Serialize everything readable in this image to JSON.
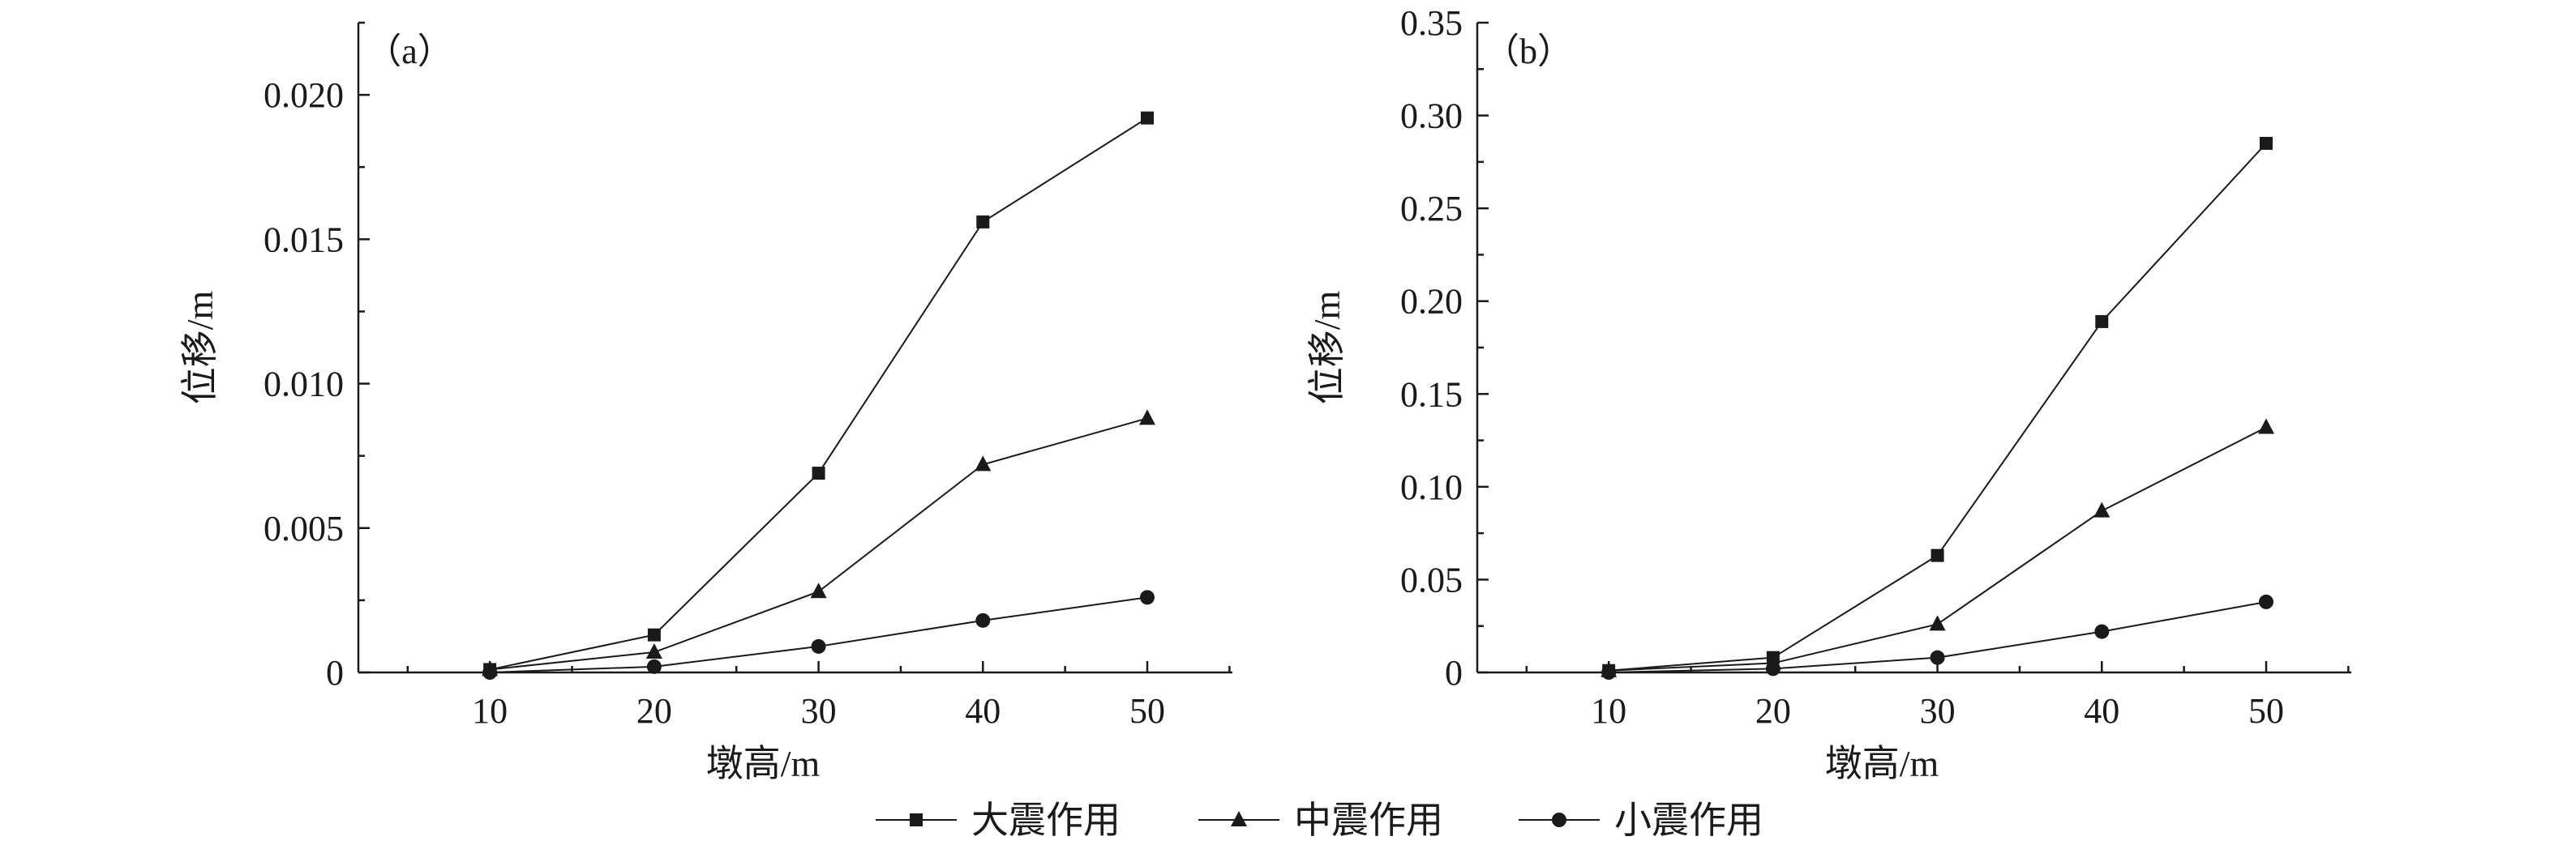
{
  "chart_data": [
    {
      "type": "line",
      "panel_label": "（a）",
      "xlabel": "墩高/m",
      "ylabel": "位移/m",
      "x": [
        10,
        20,
        30,
        40,
        50
      ],
      "xticks": [
        "10",
        "20",
        "30",
        "40",
        "50"
      ],
      "xlim": [
        2,
        50
      ],
      "ylim": [
        0,
        0.0225
      ],
      "yticks": [
        "0",
        "0.005",
        "0.010",
        "0.015",
        "0.020"
      ],
      "yticks_values": [
        0,
        0.005,
        0.01,
        0.015,
        0.02
      ],
      "series": [
        {
          "name": "大震作用",
          "marker": "square",
          "values": [
            0.0001,
            0.0013,
            0.0069,
            0.0156,
            0.0192
          ]
        },
        {
          "name": "中震作用",
          "marker": "triangle",
          "values": [
            0.0001,
            0.0007,
            0.0028,
            0.0072,
            0.0088
          ]
        },
        {
          "name": "小震作用",
          "marker": "circle",
          "values": [
            0.0,
            0.0002,
            0.0009,
            0.0018,
            0.0026
          ]
        }
      ]
    },
    {
      "type": "line",
      "panel_label": "（b）",
      "xlabel": "墩高/m",
      "ylabel": "位移/m",
      "x": [
        10,
        20,
        30,
        40,
        50
      ],
      "xticks": [
        "10",
        "20",
        "30",
        "40",
        "50"
      ],
      "xlim": [
        2,
        50
      ],
      "ylim": [
        0,
        0.35
      ],
      "yticks": [
        "0",
        "0.05",
        "0.10",
        "0.15",
        "0.20",
        "0.25",
        "0.30",
        "0.35"
      ],
      "yticks_values": [
        0,
        0.05,
        0.1,
        0.15,
        0.2,
        0.25,
        0.3,
        0.35
      ],
      "series": [
        {
          "name": "大震作用",
          "marker": "square",
          "values": [
            0.001,
            0.008,
            0.063,
            0.189,
            0.285
          ]
        },
        {
          "name": "中震作用",
          "marker": "triangle",
          "values": [
            0.001,
            0.005,
            0.026,
            0.087,
            0.132
          ]
        },
        {
          "name": "小震作用",
          "marker": "circle",
          "values": [
            0.0,
            0.002,
            0.008,
            0.022,
            0.038
          ]
        }
      ]
    }
  ],
  "legend": {
    "items": [
      "大震作用",
      "中震作用",
      "小震作用"
    ]
  }
}
